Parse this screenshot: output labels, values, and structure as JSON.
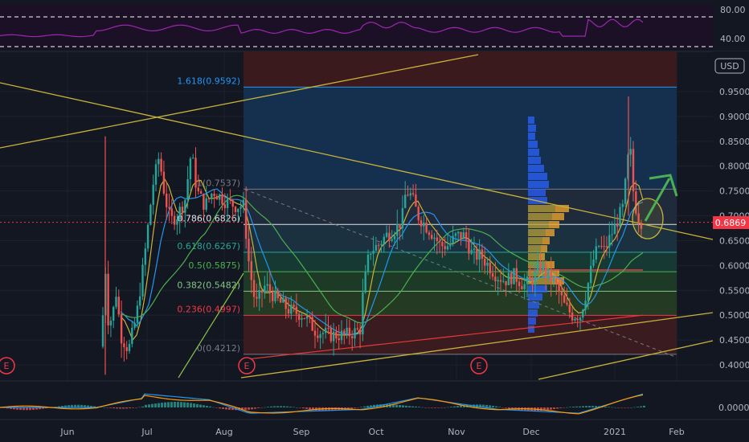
{
  "chart_data": {
    "type": "candlestick",
    "currency": "USD",
    "last_price": "0.6869",
    "x_labels": [
      "Jun",
      "Jul",
      "Aug",
      "Sep",
      "Oct",
      "Nov",
      "Dec",
      "2021",
      "Feb"
    ],
    "y_ticks": [
      "0.9500",
      "0.9000",
      "0.8500",
      "0.8000",
      "0.7500",
      "0.7000",
      "0.6500",
      "0.6000",
      "0.5500",
      "0.5000",
      "0.4500",
      "0.4000"
    ],
    "ylim": [
      0.37,
      1.06
    ],
    "rsi": {
      "ticks": [
        "80.00",
        "40.00"
      ],
      "levels": [
        70,
        30
      ]
    },
    "macd": {
      "ticks": [
        "0.0000"
      ]
    },
    "fib_levels": [
      {
        "label": "1.618(0.9592)",
        "value": 0.9592,
        "color": "#2196f3"
      },
      {
        "label": "1(0.7537)",
        "value": 0.7537,
        "color": "#787b86"
      },
      {
        "label": "0.786(0.6826)",
        "value": 0.6826,
        "color": "#e1e3ea"
      },
      {
        "label": "0.618(0.6267)",
        "value": 0.6267,
        "color": "#26a69a"
      },
      {
        "label": "0.5(0.5875)",
        "value": 0.5875,
        "color": "#4caf50"
      },
      {
        "label": "0.382(0.5482)",
        "value": 0.5482,
        "color": "#81c784"
      },
      {
        "label": "0.236(0.4997)",
        "value": 0.4997,
        "color": "#f23645"
      },
      {
        "label": "0(0.4212)",
        "value": 0.4212,
        "color": "#787b86"
      }
    ],
    "markers": [
      {
        "text": "E",
        "date": "2020-05-01"
      },
      {
        "text": "E",
        "date": "2020-08-01"
      },
      {
        "text": "E",
        "date": "2020-11-01"
      }
    ]
  }
}
